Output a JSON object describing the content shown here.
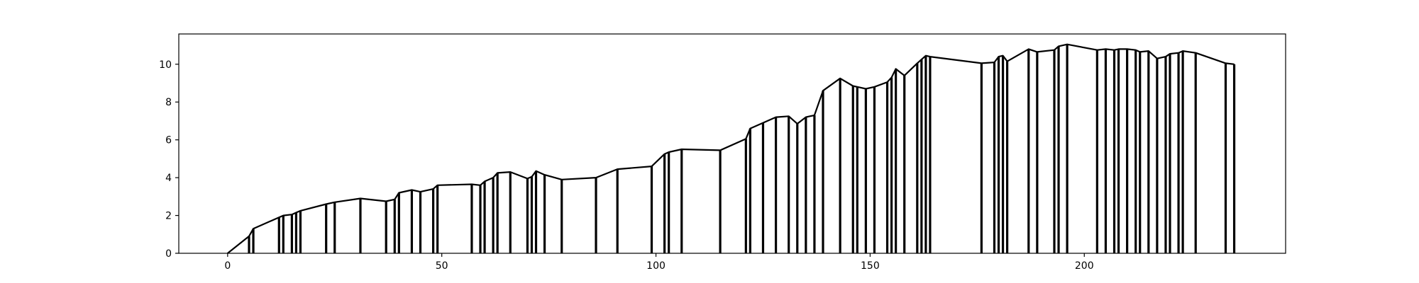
{
  "chart_data": {
    "type": "line",
    "subtype": "stem-step",
    "title": "",
    "xlabel": "",
    "ylabel": "",
    "xlim": [
      -11.4,
      247
    ],
    "ylim": [
      0,
      11.6
    ],
    "grid": false,
    "legend": "none",
    "x_ticks": [
      0,
      50,
      100,
      150,
      200
    ],
    "x_tick_labels": [
      "0",
      "50",
      "100",
      "150",
      "200"
    ],
    "y_ticks": [
      0,
      2,
      4,
      6,
      8,
      10
    ],
    "y_tick_labels": [
      "0",
      "2",
      "4",
      "6",
      "8",
      "10"
    ],
    "line_color": "#000000",
    "series": [
      {
        "x": [
          0,
          5,
          6,
          12,
          13,
          15,
          16,
          17,
          23,
          25,
          31,
          37,
          39,
          40,
          43,
          45,
          48,
          49,
          57,
          59,
          60,
          62,
          63,
          66,
          70,
          71,
          72,
          74,
          78,
          86,
          91,
          99,
          102,
          103,
          106,
          115,
          121,
          122,
          125,
          128,
          131,
          133,
          135,
          137,
          139,
          143,
          146,
          147,
          149,
          151,
          154,
          155,
          156,
          158,
          161,
          162,
          163,
          164,
          176,
          179,
          180,
          181,
          182,
          187,
          189,
          193,
          194,
          196,
          203,
          205,
          207,
          208,
          210,
          212,
          213,
          215,
          217,
          219,
          220,
          222,
          223,
          226,
          233,
          235
        ],
        "y": [
          0,
          0.9,
          1.3,
          1.9,
          2.0,
          2.05,
          2.15,
          2.25,
          2.6,
          2.7,
          2.9,
          2.75,
          2.85,
          3.2,
          3.35,
          3.25,
          3.4,
          3.6,
          3.65,
          3.6,
          3.8,
          4.0,
          4.25,
          4.3,
          3.95,
          4.05,
          4.35,
          4.15,
          3.9,
          4.0,
          4.45,
          4.6,
          5.25,
          5.35,
          5.5,
          5.45,
          6.05,
          6.6,
          6.9,
          7.2,
          7.25,
          6.85,
          7.2,
          7.3,
          8.6,
          9.25,
          8.85,
          8.8,
          8.7,
          8.8,
          9.05,
          9.3,
          9.75,
          9.4,
          10.05,
          10.25,
          10.45,
          10.4,
          10.05,
          10.1,
          10.4,
          10.45,
          10.15,
          10.8,
          10.65,
          10.75,
          10.95,
          11.05,
          10.75,
          10.8,
          10.75,
          10.8,
          10.8,
          10.75,
          10.65,
          10.7,
          10.3,
          10.4,
          10.55,
          10.6,
          10.7,
          10.6,
          10.05,
          10.0
        ]
      }
    ]
  }
}
